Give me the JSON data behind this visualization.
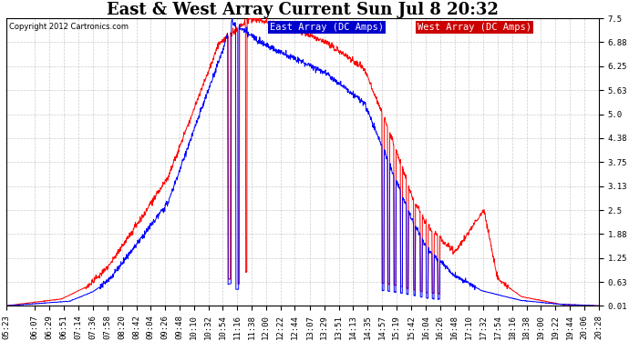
{
  "title": "East & West Array Current Sun Jul 8 20:32",
  "copyright": "Copyright 2012 Cartronics.com",
  "legend_east": "East Array (DC Amps)",
  "legend_west": "West Array (DC Amps)",
  "east_color": "#0000ff",
  "west_color": "#ff0000",
  "background_color": "#ffffff",
  "grid_color": "#aaaaaa",
  "ylim": [
    0.01,
    7.5
  ],
  "yticks": [
    0.01,
    0.63,
    1.25,
    1.88,
    2.5,
    3.13,
    3.75,
    4.38,
    5.0,
    5.63,
    6.25,
    6.88,
    7.5
  ],
  "xtick_labels": [
    "05:23",
    "06:07",
    "06:29",
    "06:51",
    "07:14",
    "07:36",
    "07:58",
    "08:20",
    "08:42",
    "09:04",
    "09:26",
    "09:48",
    "10:10",
    "10:32",
    "10:54",
    "11:16",
    "11:38",
    "12:00",
    "12:22",
    "12:44",
    "13:07",
    "13:29",
    "13:51",
    "14:13",
    "14:35",
    "14:57",
    "15:19",
    "15:42",
    "16:04",
    "16:26",
    "16:48",
    "17:10",
    "17:32",
    "17:54",
    "18:16",
    "18:38",
    "19:00",
    "19:22",
    "19:44",
    "20:06",
    "20:28"
  ],
  "title_fontsize": 13,
  "axis_fontsize": 6.5,
  "legend_fontsize": 7.5,
  "legend_east_bg": "#0000cc",
  "legend_west_bg": "#cc0000"
}
